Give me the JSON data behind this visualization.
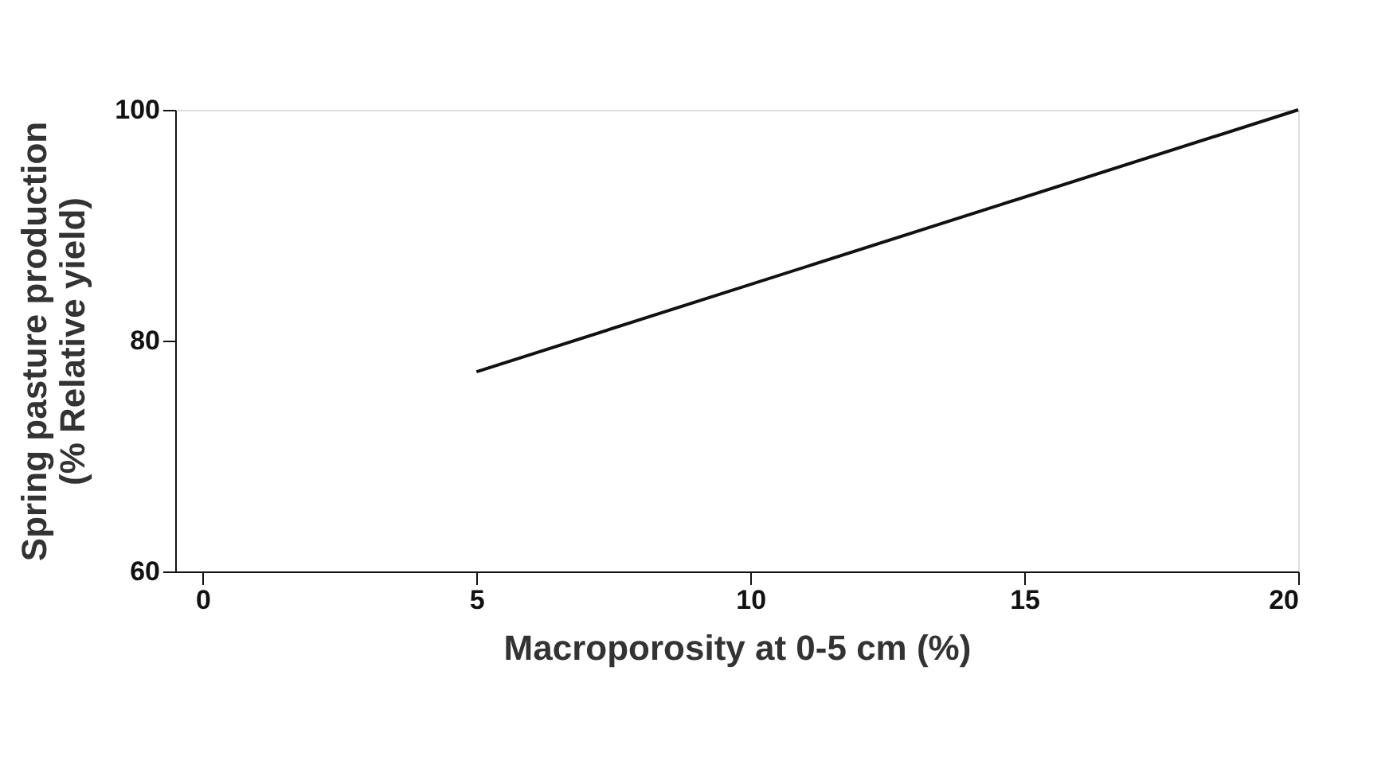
{
  "chart_data": {
    "type": "line",
    "xlabel": "Macroporosity at 0-5 cm (%)",
    "ylabel": "Spring pasture production (% Relative yield)",
    "x": [
      5,
      20
    ],
    "series": [
      {
        "color": "#111111",
        "values": [
          77.3,
          100
        ]
      }
    ],
    "xlim": [
      -0.5,
      20
    ],
    "xticks": [
      0,
      5,
      10,
      15,
      20
    ],
    "ylim": [
      60,
      100
    ],
    "yticks": [
      60,
      80,
      100
    ],
    "grid": false,
    "marker": "none",
    "line_style": "solid"
  }
}
